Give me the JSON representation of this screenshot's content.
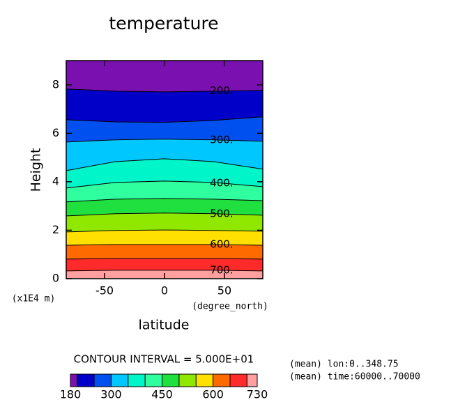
{
  "chart_data": {
    "type": "contour",
    "title": "temperature",
    "xlabel": "latitude",
    "xunit": "(degree_north)",
    "ylabel": "Height",
    "yunit": "(x1E4 m)",
    "xlim": [
      -82,
      82
    ],
    "ylim": [
      0,
      9
    ],
    "xticks": [
      -50,
      0,
      50
    ],
    "yticks": [
      0,
      2,
      4,
      6,
      8
    ],
    "x": [
      -82,
      -41,
      0,
      41,
      82
    ],
    "contours": [
      {
        "level": 200,
        "label": "200.",
        "heights": [
          7.83,
          7.74,
          7.71,
          7.74,
          7.77
        ]
      },
      {
        "level": 250,
        "heights": [
          6.56,
          6.47,
          6.45,
          6.53,
          6.68
        ]
      },
      {
        "level": 300,
        "label": "300.",
        "heights": [
          5.64,
          5.73,
          5.76,
          5.73,
          5.67
        ]
      },
      {
        "level": 350,
        "heights": [
          4.46,
          4.83,
          4.95,
          4.83,
          4.52
        ]
      },
      {
        "level": 400,
        "label": "400.",
        "heights": [
          3.74,
          3.97,
          4.03,
          3.97,
          3.8
        ]
      },
      {
        "level": 450,
        "heights": [
          3.17,
          3.28,
          3.31,
          3.28,
          3.22
        ]
      },
      {
        "level": 500,
        "label": "500.",
        "heights": [
          2.59,
          2.68,
          2.71,
          2.68,
          2.62
        ]
      },
      {
        "level": 550,
        "heights": [
          1.93,
          1.99,
          2.01,
          1.99,
          1.96
        ]
      },
      {
        "level": 600,
        "label": "600.",
        "heights": [
          1.38,
          1.41,
          1.41,
          1.41,
          1.38
        ]
      },
      {
        "level": 650,
        "heights": [
          0.81,
          0.83,
          0.83,
          0.83,
          0.81
        ]
      },
      {
        "level": 700,
        "label": "700.",
        "heights": [
          0.32,
          0.35,
          0.35,
          0.35,
          0.32
        ]
      }
    ],
    "colors": [
      "#7a10b0",
      "#0000c8",
      "#0050f0",
      "#00c8ff",
      "#00f5c8",
      "#30ffa0",
      "#20e040",
      "#90e800",
      "#ffe000",
      "#ff6a00",
      "#ff2a2a",
      "#ffa0a0"
    ],
    "colorbar": {
      "lim": [
        180,
        730
      ],
      "ticks": [
        180,
        300,
        450,
        600,
        730
      ]
    },
    "contour_interval": "CONTOUR INTERVAL = 5.000E+01",
    "notes": [
      "(mean) lon:0..348.75",
      "(mean) time:60000..70000"
    ]
  }
}
